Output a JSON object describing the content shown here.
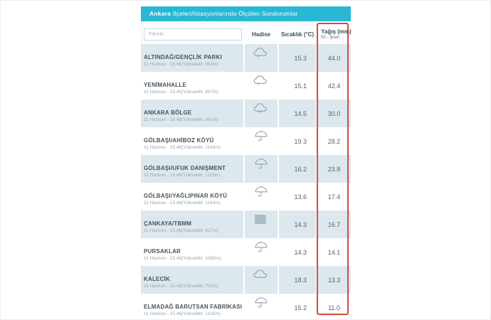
{
  "header": {
    "city": "Ankara",
    "title_rest": "İlçeleri/İstasyonlarında Ölçülen Sondurumlar"
  },
  "table": {
    "filter_placeholder": "Filtrele..",
    "columns": {
      "event": "Hadise",
      "temperature": "Sıcaklık (°C)",
      "precipitation": "Yağış (mm)"
    },
    "precipitation_sub": "00 - Şuan"
  },
  "rows": [
    {
      "name": "ALTINDAĞ/GENÇLİK PARKI",
      "sub": "11 Haziran - 15.46(Yükseklik: 854m)",
      "icon": "cloud-light-rain",
      "temp": "15.3",
      "precip": "44.0"
    },
    {
      "name": "YENİMAHALLE",
      "sub": "11 Haziran - 15.45(Yükseklik: 857m)",
      "icon": "cloud-light-rain",
      "temp": "15.1",
      "precip": "42.4"
    },
    {
      "name": "ANKARA BÖLGE",
      "sub": "11 Haziran - 15.46(Yükseklik: 891m)",
      "icon": "cloud-mixed-rain",
      "temp": "14.5",
      "precip": "30.0"
    },
    {
      "name": "GÖLBAŞI/AHİBOZ KÖYÜ",
      "sub": "11 Haziran - 15.46(Yükseklik: 1140m)",
      "icon": "umbrella",
      "temp": "19.3",
      "precip": "28.2"
    },
    {
      "name": "GÖLBAŞI/UFUK DANIŞMENT",
      "sub": "11 Haziran - 15.46(Yükseklik: 1115m)",
      "icon": "umbrella",
      "temp": "16.2",
      "precip": "23.8"
    },
    {
      "name": "GÖLBAŞI/YAĞLIPINAR KÖYÜ",
      "sub": "11 Haziran - 15.46(Yükseklik: 1143m)",
      "icon": "umbrella",
      "temp": "13.6",
      "precip": "17.4"
    },
    {
      "name": "ÇANKAYA/TBMM",
      "sub": "11 Haziran - 15.46(Yükseklik: 927m)",
      "icon": "fog",
      "temp": "14.3",
      "precip": "16.7"
    },
    {
      "name": "PURSAKLAR",
      "sub": "11 Haziran - 15.46(Yükseklik: 1065m)",
      "icon": "umbrella",
      "temp": "14.3",
      "precip": "14.1"
    },
    {
      "name": "KALECİK",
      "sub": "11 Haziran - 15.45(Yükseklik: 702m)",
      "icon": "cloud",
      "temp": "18.3",
      "precip": "13.3"
    },
    {
      "name": "ELMADAĞ BARUTSAN FABRİKASI",
      "sub": "11 Haziran - 15.46(Yükseklik: 1135m)",
      "icon": "umbrella",
      "temp": "15.2",
      "precip": "11.0"
    }
  ],
  "colors": {
    "header_bg": "#29b7d3",
    "row_shade": "#dde8ee",
    "highlight_box": "#d9473f",
    "rain_green": "#5cb85c",
    "rain_red": "#d9534f"
  }
}
